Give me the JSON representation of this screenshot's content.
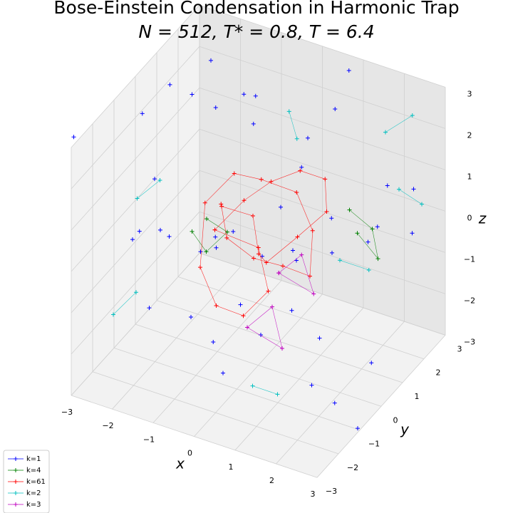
{
  "chart_data": {
    "type": "scatter3d",
    "title": "Bose-Einstein Condensation in Harmonic Trap",
    "subtitle": "N = 512, T* = 0.8, T = 6.4",
    "xlabel": "x",
    "ylabel": "y",
    "zlabel": "z",
    "xlim": [
      -3,
      3
    ],
    "ylim": [
      -3,
      3
    ],
    "zlim": [
      -3,
      3
    ],
    "xticks": [
      {
        "value": -3,
        "label": "−3"
      },
      {
        "value": -2,
        "label": "−2"
      },
      {
        "value": -1,
        "label": "−1"
      },
      0,
      1,
      2,
      3
    ],
    "yticks": [
      {
        "value": -3,
        "label": "−3"
      },
      {
        "value": -2,
        "label": "−2"
      },
      {
        "value": -1,
        "label": "−1"
      },
      0,
      1,
      2,
      3
    ],
    "zticks": [
      {
        "value": -3,
        "label": "−3"
      },
      {
        "value": -2,
        "label": "−2"
      },
      {
        "value": -1,
        "label": "−1"
      },
      0,
      1,
      2,
      3
    ],
    "grid": true,
    "legend": "lower left",
    "series": [
      {
        "name": "k=1",
        "color": "#0000ff",
        "x": [
          -3.2,
          -2.8,
          -2.5,
          -2.1,
          -1.8,
          -1.5,
          -1.2,
          -0.9,
          -0.6,
          -0.3,
          0.1,
          0.4,
          0.7,
          1.0,
          1.3,
          1.6,
          1.9,
          2.2,
          2.5,
          2.8,
          -2.6,
          -2.2,
          -1.7,
          -1.1,
          -0.4,
          0.2,
          0.9,
          1.5,
          2.1,
          2.7,
          -3.0,
          -2.0,
          -1.0,
          0.0,
          1.0,
          2.0,
          3.0,
          -1.4,
          0.6,
          1.8,
          -0.8,
          2.4,
          -2.4,
          0.3,
          1.2
        ],
        "y": [
          -2.5,
          1.2,
          2.8,
          -1.4,
          0.3,
          2.2,
          -2.8,
          1.6,
          -0.5,
          2.6,
          -2.2,
          0.8,
          2.9,
          -1.8,
          1.1,
          -0.2,
          2.4,
          -2.6,
          0.5,
          1.9,
          -0.9,
          2.0,
          -2.3,
          0.0,
          -1.2,
          1.4,
          -2.9,
          2.7,
          -0.6,
          -1.6,
          0.9,
          -0.3,
          2.1,
          -2.7,
          0.4,
          1.3,
          -1.1,
          -1.9,
          2.3,
          -2.4,
          0.7,
          2.6,
          1.5,
          -0.8,
          0.2
        ],
        "z": [
          2.9,
          -1.5,
          0.8,
          3.2,
          -2.6,
          1.8,
          -0.4,
          2.3,
          -3.1,
          0.2,
          1.4,
          -2.0,
          2.7,
          -0.9,
          3.0,
          -1.7,
          0.6,
          2.0,
          -2.4,
          1.1,
          -0.3,
          2.5,
          1.0,
          -2.8,
          0.4,
          -1.2,
          2.2,
          -0.7,
          1.6,
          -2.1,
          0.0,
          3.3,
          -1.9,
          1.3,
          2.6,
          -0.1,
          -2.9,
          0.9,
          -1.4,
          2.8,
          -2.2,
          -0.5,
          1.9,
          3.4,
          -3.2
        ]
      },
      {
        "name": "k=4",
        "color": "#008000",
        "x": [
          -1.0,
          -0.6,
          -0.8,
          -1.2,
          null,
          1.6,
          2.0,
          2.4,
          2.0
        ],
        "y": [
          -0.5,
          -0.3,
          -0.9,
          -0.8,
          null,
          1.2,
          1.5,
          1.0,
          0.8
        ],
        "z": [
          0.5,
          0.2,
          0.0,
          0.3,
          null,
          0.6,
          0.1,
          -0.2,
          0.4
        ]
      },
      {
        "name": "k=61",
        "color": "#ff0000",
        "x": [
          -0.8,
          -0.4,
          0.0,
          0.5,
          0.9,
          1.2,
          0.8,
          0.3,
          -0.2,
          -0.6,
          -1.0,
          -0.7,
          -0.3,
          0.2,
          0.6,
          1.0,
          0.7,
          0.1,
          -0.5,
          -0.9,
          -1.3,
          -1.0,
          -0.4,
          0.0,
          0.4,
          -0.1,
          -0.8
        ],
        "y": [
          -0.5,
          0.1,
          0.6,
          1.0,
          1.4,
          0.9,
          0.3,
          -0.2,
          0.4,
          0.9,
          0.2,
          -0.4,
          -0.9,
          -0.6,
          0.0,
          0.5,
          1.2,
          1.6,
          1.1,
          0.6,
          0.0,
          -0.8,
          -1.2,
          -0.7,
          -0.3,
          0.2,
          -0.5
        ],
        "z": [
          0.3,
          0.8,
          1.1,
          1.3,
          1.0,
          0.6,
          0.2,
          -0.3,
          -0.6,
          -0.1,
          0.4,
          0.9,
          0.5,
          0.0,
          -0.4,
          -0.8,
          -0.2,
          0.3,
          0.7,
          1.0,
          0.5,
          -0.5,
          -1.0,
          -1.4,
          -0.9,
          -0.3,
          0.3
        ]
      },
      {
        "name": "k=2",
        "color": "#00bfbf",
        "x": [
          -2.6,
          -2.2,
          null,
          1.8,
          2.3,
          null,
          -0.5,
          -0.1,
          null,
          2.2,
          2.7,
          null,
          -1.6,
          -1.2,
          null,
          0.8,
          1.2,
          null,
          2.6,
          3.0
        ],
        "y": [
          -1.8,
          -1.5,
          null,
          2.5,
          2.8,
          null,
          2.4,
          2.0,
          null,
          -0.4,
          0.0,
          null,
          -2.6,
          -2.3,
          null,
          -1.8,
          -1.4,
          null,
          1.6,
          1.9
        ],
        "z": [
          -1.6,
          -1.1,
          null,
          1.8,
          2.2,
          null,
          1.6,
          1.3,
          null,
          0.5,
          0.2,
          null,
          2.0,
          2.4,
          null,
          -2.2,
          -2.5,
          null,
          1.2,
          0.8
        ]
      },
      {
        "name": "k=3",
        "color": "#bf00bf",
        "x": [
          0.2,
          0.6,
          1.0,
          0.2,
          null,
          0.5,
          0.9,
          1.3,
          0.5
        ],
        "y": [
          -0.9,
          -0.5,
          -0.8,
          -0.9,
          null,
          0.0,
          0.3,
          0.1,
          0.0
        ],
        "z": [
          -1.5,
          -1.1,
          -1.8,
          -1.5,
          null,
          -0.6,
          -0.2,
          -0.9,
          -0.6
        ]
      }
    ]
  }
}
